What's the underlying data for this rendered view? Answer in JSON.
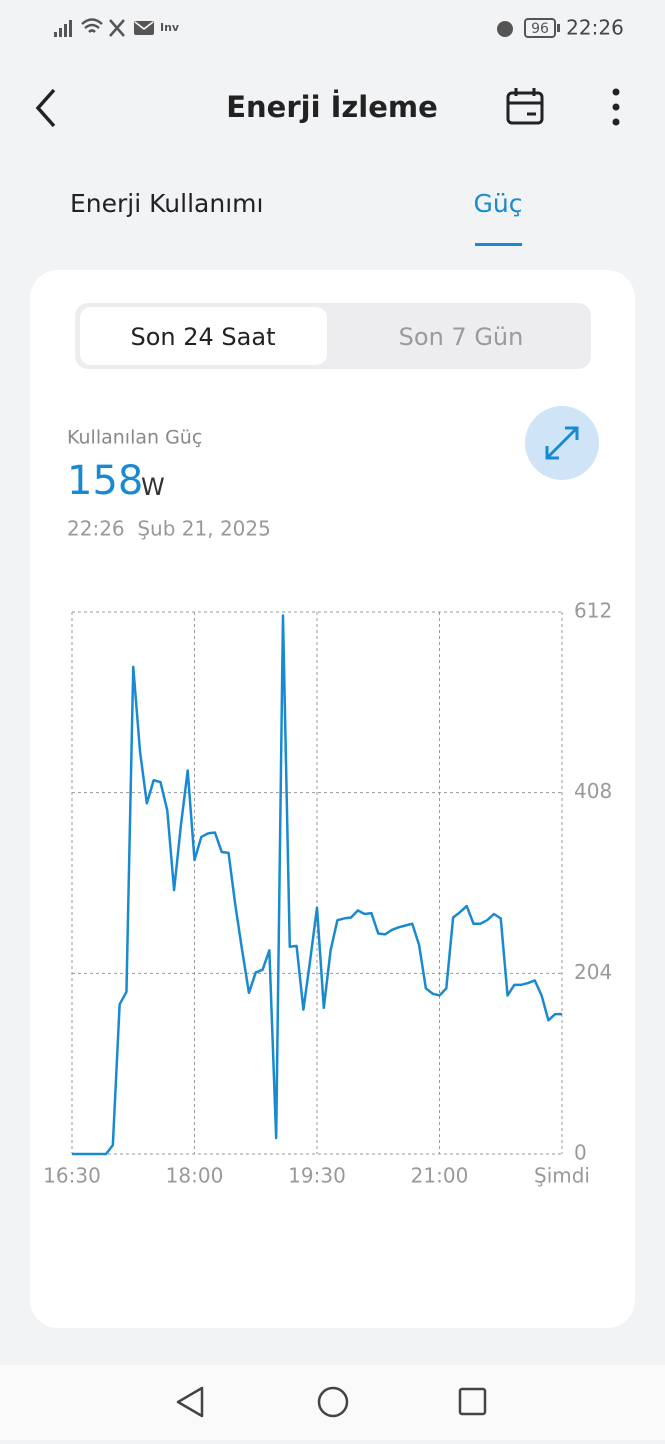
{
  "status_bar": {
    "time": "22:26",
    "battery": "96",
    "notification_label": "Inv"
  },
  "header": {
    "title": "Enerji İzleme"
  },
  "tabs": [
    "Enerji Kullanımı",
    "Güç"
  ],
  "range_options": [
    "Son 24 Saat",
    "Son 7 Gün"
  ],
  "reading": {
    "label": "Kullanılan Güç",
    "value": 158,
    "unit": "W",
    "timestamp": "22:26  Şub 21, 2025"
  },
  "chart_data": {
    "type": "line",
    "color": "#1a8ad0",
    "xtick_labels": [
      "16:30",
      "18:00",
      "19:30",
      "21:00",
      "Şimdi"
    ],
    "values": [
      0,
      0,
      0,
      0,
      0,
      0,
      10,
      169,
      183,
      550,
      454,
      396,
      422,
      420,
      388,
      298,
      371,
      433,
      332,
      358,
      362,
      363,
      341,
      340,
      281,
      230,
      182,
      205,
      208,
      230,
      18,
      608,
      234,
      235,
      163,
      219,
      278,
      165,
      230,
      264,
      266,
      267,
      275,
      271,
      272,
      249,
      248,
      253,
      256,
      258,
      260,
      236,
      187,
      181,
      179,
      187,
      267,
      273,
      280,
      260,
      260,
      264,
      271,
      266,
      179,
      191,
      191,
      193,
      196,
      179,
      151,
      158,
      158
    ],
    "ylim": [
      0,
      612
    ],
    "yticks": [
      0,
      204,
      408,
      612
    ],
    "grid": true
  }
}
